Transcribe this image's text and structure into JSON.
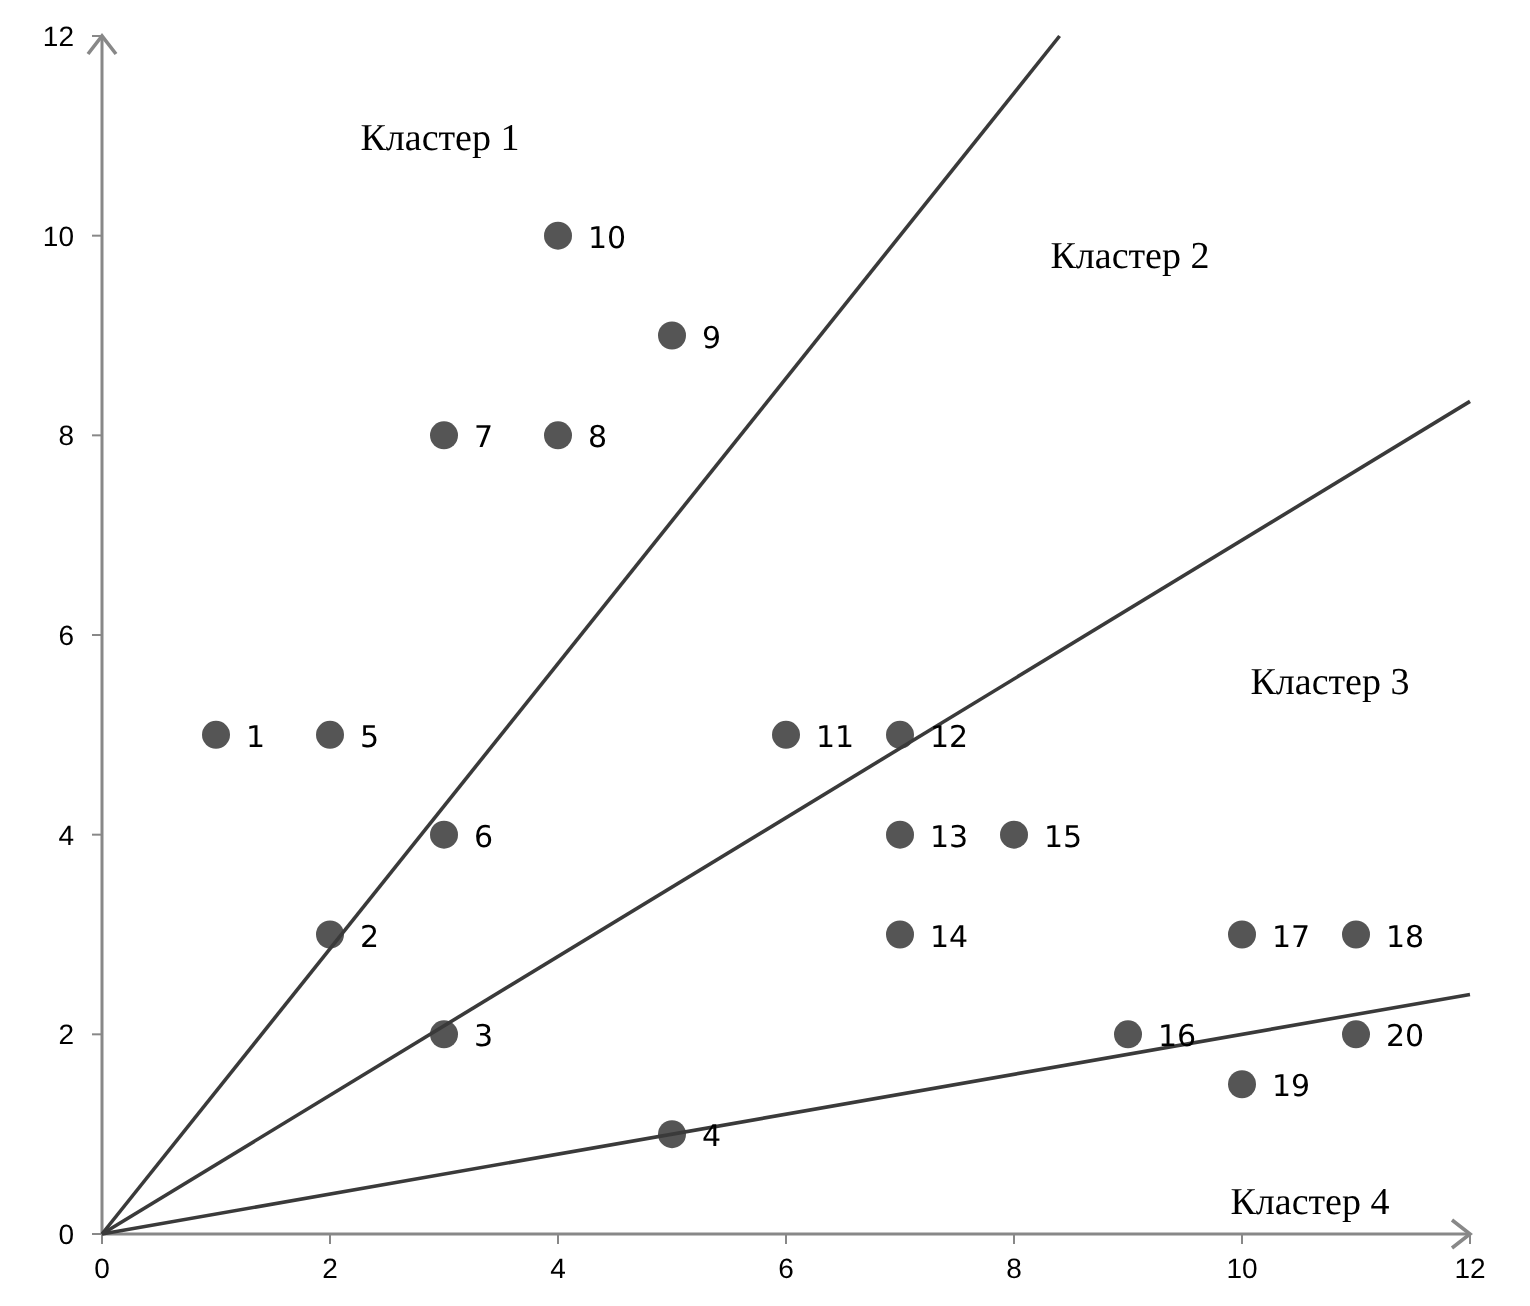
{
  "chart_data": {
    "type": "scatter",
    "xlim": [
      0,
      12
    ],
    "ylim": [
      0,
      12
    ],
    "xticks": [
      0,
      2,
      4,
      6,
      8,
      10,
      12
    ],
    "yticks": [
      0,
      2,
      4,
      6,
      8,
      10,
      12
    ],
    "grid": false,
    "marker": "circle",
    "series": [
      {
        "color": "#555555",
        "x": [
          1,
          2,
          3,
          5,
          2,
          3,
          3,
          4,
          5,
          4,
          6,
          7,
          7,
          7,
          8,
          9,
          10,
          11,
          10,
          11
        ],
        "values": [
          5,
          3,
          2,
          1,
          5,
          4,
          8,
          8,
          9,
          10,
          5,
          5,
          4,
          3,
          4,
          2,
          3,
          3,
          1.5,
          2
        ]
      },
      {
        "type": "line",
        "color": "#3a3a3a",
        "line_style": "solid",
        "marker": "none",
        "x": [
          0,
          8.4
        ],
        "values": [
          0,
          12
        ]
      },
      {
        "type": "line",
        "color": "#3a3a3a",
        "line_style": "solid",
        "marker": "none",
        "x": [
          0,
          12
        ],
        "values": [
          0,
          8.34
        ]
      },
      {
        "type": "line",
        "color": "#3a3a3a",
        "line_style": "solid",
        "marker": "none",
        "x": [
          0,
          12
        ],
        "values": [
          0,
          2.4
        ]
      }
    ],
    "annotations": [
      {
        "text": "1",
        "x": 1,
        "y": 5
      },
      {
        "text": "2",
        "x": 2,
        "y": 3
      },
      {
        "text": "3",
        "x": 3,
        "y": 2
      },
      {
        "text": "4",
        "x": 5,
        "y": 1
      },
      {
        "text": "5",
        "x": 2,
        "y": 5
      },
      {
        "text": "6",
        "x": 3,
        "y": 4
      },
      {
        "text": "7",
        "x": 3,
        "y": 8
      },
      {
        "text": "8",
        "x": 4,
        "y": 8
      },
      {
        "text": "9",
        "x": 5,
        "y": 9
      },
      {
        "text": "10",
        "x": 4,
        "y": 10
      },
      {
        "text": "11",
        "x": 6,
        "y": 5
      },
      {
        "text": "12",
        "x": 7,
        "y": 5
      },
      {
        "text": "13",
        "x": 7,
        "y": 4
      },
      {
        "text": "14",
        "x": 7,
        "y": 3
      },
      {
        "text": "15",
        "x": 8,
        "y": 4
      },
      {
        "text": "16",
        "x": 9,
        "y": 2
      },
      {
        "text": "17",
        "x": 10,
        "y": 3
      },
      {
        "text": "18",
        "x": 11,
        "y": 3
      },
      {
        "text": "19",
        "x": 10,
        "y": 1.5
      },
      {
        "text": "20",
        "x": 11,
        "y": 2
      },
      "Кластер 1",
      "Кластер 2",
      "Кластер 3",
      "Кластер 4"
    ]
  }
}
